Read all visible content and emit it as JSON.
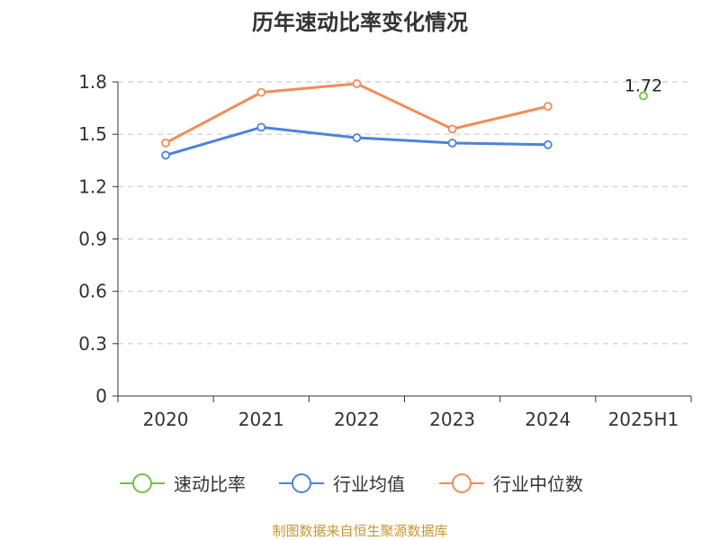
{
  "chart_data": {
    "type": "line",
    "title": "历年速动比率变化情况",
    "categories": [
      "2020",
      "2021",
      "2022",
      "2023",
      "2024",
      "2025H1"
    ],
    "ylim": [
      0,
      1.8
    ],
    "yticks": [
      "0",
      "0.3",
      "0.6",
      "0.9",
      "1.2",
      "1.5",
      "1.8"
    ],
    "grid": "horizontal-dashed",
    "legend_position": "bottom",
    "series": [
      {
        "name": "速动比率",
        "color": "#73c045",
        "values": [
          null,
          null,
          null,
          null,
          null,
          1.72
        ],
        "labels": [
          null,
          null,
          null,
          null,
          null,
          "1.72"
        ]
      },
      {
        "name": "行业均值",
        "color": "#4f81dd",
        "values": [
          1.38,
          1.54,
          1.48,
          1.45,
          1.44,
          null
        ]
      },
      {
        "name": "行业中位数",
        "color": "#f28c58",
        "values": [
          1.45,
          1.74,
          1.79,
          1.53,
          1.66,
          null
        ]
      }
    ]
  },
  "source": "制图数据来自恒生聚源数据库"
}
